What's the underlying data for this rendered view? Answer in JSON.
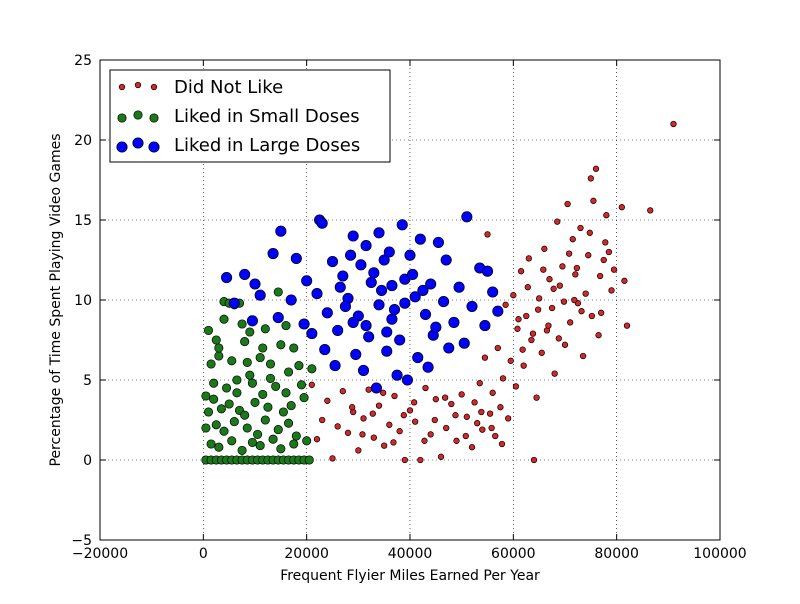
{
  "chart_data": {
    "type": "scatter",
    "title": "",
    "xlabel": "Frequent Flyier Miles Earned Per Year",
    "ylabel": "Percentage of Time Spent Playing Video Games",
    "xlim": [
      -20000,
      100000
    ],
    "ylim": [
      -5,
      25
    ],
    "xticks": [
      -20000,
      0,
      20000,
      40000,
      60000,
      80000,
      100000
    ],
    "xtick_labels": [
      "−20000",
      "0",
      "20000",
      "40000",
      "60000",
      "80000",
      "100000"
    ],
    "yticks": [
      -5,
      0,
      5,
      10,
      15,
      20,
      25
    ],
    "ytick_labels": [
      "−5",
      "0",
      "5",
      "10",
      "15",
      "20",
      "25"
    ],
    "grid": true,
    "legend_placement": "top-left",
    "series": [
      {
        "name": "Did Not Like",
        "color": "#d62728",
        "points": [
          [
            91000,
            21.0
          ],
          [
            86500,
            15.6
          ],
          [
            82000,
            8.4
          ],
          [
            81500,
            11.2
          ],
          [
            81000,
            15.8
          ],
          [
            79000,
            10.6
          ],
          [
            78500,
            13.0
          ],
          [
            78000,
            15.3
          ],
          [
            77500,
            12.5
          ],
          [
            77000,
            9.2
          ],
          [
            76500,
            7.8
          ],
          [
            76000,
            18.2
          ],
          [
            75500,
            16.2
          ],
          [
            75000,
            17.6
          ],
          [
            74500,
            12.8
          ],
          [
            74000,
            10.4
          ],
          [
            73500,
            6.5
          ],
          [
            73000,
            14.5
          ],
          [
            72500,
            9.8
          ],
          [
            72000,
            11.6
          ],
          [
            71500,
            13.8
          ],
          [
            71000,
            8.6
          ],
          [
            70500,
            16.0
          ],
          [
            70000,
            7.2
          ],
          [
            69500,
            12.1
          ],
          [
            69000,
            10.9
          ],
          [
            68500,
            14.9
          ],
          [
            68000,
            5.4
          ],
          [
            67500,
            9.5
          ],
          [
            67000,
            11.3
          ],
          [
            66500,
            8.1
          ],
          [
            66000,
            13.2
          ],
          [
            65500,
            6.7
          ],
          [
            65000,
            10.1
          ],
          [
            64500,
            3.9
          ],
          [
            64000,
            0.0
          ],
          [
            63500,
            7.5
          ],
          [
            63000,
            12.6
          ],
          [
            62500,
            9.0
          ],
          [
            62000,
            5.9
          ],
          [
            61500,
            11.8
          ],
          [
            61000,
            8.8
          ],
          [
            60500,
            4.6
          ],
          [
            60000,
            10.3
          ],
          [
            59500,
            6.2
          ],
          [
            59000,
            2.6
          ],
          [
            58500,
            9.7
          ],
          [
            58000,
            5.1
          ],
          [
            57500,
            3.3
          ],
          [
            57000,
            7.0
          ],
          [
            56500,
            1.5
          ],
          [
            56000,
            4.2
          ],
          [
            55500,
            2.9
          ],
          [
            55000,
            14.1
          ],
          [
            54500,
            6.4
          ],
          [
            54000,
            1.9
          ],
          [
            53500,
            4.8
          ],
          [
            53000,
            2.3
          ],
          [
            52500,
            3.6
          ],
          [
            52000,
            0.8
          ],
          [
            51000,
            2.7
          ],
          [
            50000,
            4.1
          ],
          [
            49000,
            1.2
          ],
          [
            48000,
            3.5
          ],
          [
            47000,
            2.0
          ],
          [
            46000,
            0.2
          ],
          [
            45000,
            3.8
          ],
          [
            44000,
            1.6
          ],
          [
            43000,
            4.5
          ],
          [
            42000,
            0.0
          ],
          [
            41000,
            2.4
          ],
          [
            40000,
            3.1
          ],
          [
            39000,
            0.0
          ],
          [
            38000,
            1.8
          ],
          [
            37000,
            4.0
          ],
          [
            36000,
            2.2
          ],
          [
            35000,
            0.9
          ],
          [
            34000,
            3.4
          ],
          [
            33000,
            1.4
          ],
          [
            32000,
            4.4
          ],
          [
            31000,
            2.6
          ],
          [
            30000,
            0.6
          ],
          [
            29000,
            3.0
          ],
          [
            28000,
            1.7
          ],
          [
            27000,
            4.3
          ],
          [
            26000,
            2.1
          ],
          [
            25000,
            0.1
          ],
          [
            24000,
            3.7
          ],
          [
            23000,
            2.5
          ],
          [
            22000,
            1.3
          ],
          [
            21000,
            4.7
          ],
          [
            72300,
            12.0
          ],
          [
            71800,
            10.0
          ],
          [
            73200,
            9.3
          ],
          [
            74800,
            14.2
          ],
          [
            76800,
            11.5
          ],
          [
            75200,
            9.0
          ],
          [
            70800,
            12.9
          ],
          [
            69800,
            9.9
          ],
          [
            68800,
            7.6
          ],
          [
            67800,
            10.7
          ],
          [
            66800,
            8.4
          ],
          [
            65800,
            11.9
          ],
          [
            64800,
            9.4
          ],
          [
            63800,
            7.9
          ],
          [
            62800,
            10.8
          ],
          [
            61800,
            6.9
          ],
          [
            60800,
            8.2
          ],
          [
            79500,
            11.9
          ],
          [
            77800,
            13.6
          ],
          [
            53800,
            3.0
          ],
          [
            55800,
            2.0
          ],
          [
            57800,
            1.0
          ],
          [
            50800,
            1.5
          ],
          [
            48800,
            2.8
          ],
          [
            46800,
            3.9
          ],
          [
            44800,
            2.5
          ],
          [
            42800,
            1.2
          ],
          [
            40800,
            3.6
          ],
          [
            38800,
            2.8
          ],
          [
            36800,
            1.1
          ],
          [
            34800,
            4.2
          ],
          [
            32800,
            2.9
          ],
          [
            30800,
            1.6
          ],
          [
            28800,
            3.3
          ]
        ]
      },
      {
        "name": "Liked in Small Doses",
        "color": "#1a7a1a",
        "points": [
          [
            4000,
            9.9
          ],
          [
            5000,
            9.8
          ],
          [
            6000,
            9.7
          ],
          [
            7000,
            9.8
          ],
          [
            14500,
            10.5
          ],
          [
            7500,
            8.5
          ],
          [
            2500,
            7.5
          ],
          [
            1000,
            8.1
          ],
          [
            9000,
            8.0
          ],
          [
            12000,
            8.2
          ],
          [
            15000,
            7.2
          ],
          [
            17500,
            7.0
          ],
          [
            1500,
            6.0
          ],
          [
            3000,
            6.5
          ],
          [
            5500,
            6.2
          ],
          [
            8500,
            6.1
          ],
          [
            11000,
            6.4
          ],
          [
            13000,
            6.0
          ],
          [
            16500,
            5.5
          ],
          [
            18500,
            5.9
          ],
          [
            500,
            4.0
          ],
          [
            2000,
            4.8
          ],
          [
            4500,
            4.5
          ],
          [
            6500,
            4.2
          ],
          [
            9500,
            4.8
          ],
          [
            11500,
            4.1
          ],
          [
            14000,
            4.6
          ],
          [
            16000,
            4.2
          ],
          [
            19000,
            4.7
          ],
          [
            21000,
            5.7
          ],
          [
            1000,
            3.0
          ],
          [
            3500,
            3.2
          ],
          [
            5000,
            3.5
          ],
          [
            7000,
            3.1
          ],
          [
            8000,
            2.8
          ],
          [
            10000,
            3.6
          ],
          [
            12500,
            3.3
          ],
          [
            15500,
            3.0
          ],
          [
            17000,
            3.4
          ],
          [
            19500,
            3.9
          ],
          [
            500,
            2.0
          ],
          [
            2500,
            2.2
          ],
          [
            4000,
            1.8
          ],
          [
            6000,
            2.4
          ],
          [
            8500,
            2.0
          ],
          [
            10500,
            1.6
          ],
          [
            12000,
            2.5
          ],
          [
            14500,
            1.9
          ],
          [
            16500,
            2.3
          ],
          [
            18000,
            1.5
          ],
          [
            1500,
            1.0
          ],
          [
            3000,
            0.8
          ],
          [
            5500,
            1.2
          ],
          [
            7500,
            0.6
          ],
          [
            9500,
            1.1
          ],
          [
            11000,
            0.9
          ],
          [
            13500,
            1.3
          ],
          [
            15000,
            0.7
          ],
          [
            17500,
            1.0
          ],
          [
            20000,
            1.2
          ],
          [
            500,
            0.0
          ],
          [
            1500,
            0.0
          ],
          [
            2500,
            0.0
          ],
          [
            3500,
            0.0
          ],
          [
            4500,
            0.0
          ],
          [
            5500,
            0.0
          ],
          [
            6500,
            0.0
          ],
          [
            7500,
            0.0
          ],
          [
            8500,
            0.0
          ],
          [
            9500,
            0.0
          ],
          [
            10500,
            0.0
          ],
          [
            11500,
            0.0
          ],
          [
            12500,
            0.0
          ],
          [
            13500,
            0.0
          ],
          [
            14500,
            0.0
          ],
          [
            15500,
            0.0
          ],
          [
            16500,
            0.0
          ],
          [
            17500,
            0.0
          ],
          [
            18500,
            0.0
          ],
          [
            19500,
            0.0
          ],
          [
            20500,
            0.0
          ],
          [
            2000,
            3.8
          ],
          [
            6500,
            5.0
          ],
          [
            9000,
            5.3
          ],
          [
            13000,
            5.1
          ],
          [
            3000,
            7.0
          ],
          [
            8000,
            7.4
          ],
          [
            11500,
            7.0
          ],
          [
            16000,
            8.4
          ],
          [
            4000,
            8.8
          ]
        ]
      },
      {
        "name": "Liked in Large Doses",
        "color": "#0000ff",
        "points": [
          [
            51000,
            15.2
          ],
          [
            22500,
            15.0
          ],
          [
            23000,
            14.8
          ],
          [
            15000,
            14.3
          ],
          [
            29000,
            14.0
          ],
          [
            38500,
            14.7
          ],
          [
            34000,
            14.2
          ],
          [
            42000,
            13.8
          ],
          [
            45500,
            13.6
          ],
          [
            13500,
            12.9
          ],
          [
            18000,
            12.6
          ],
          [
            25000,
            12.4
          ],
          [
            31500,
            13.4
          ],
          [
            36000,
            13.0
          ],
          [
            40000,
            12.8
          ],
          [
            47000,
            12.5
          ],
          [
            53500,
            12.0
          ],
          [
            55000,
            11.8
          ],
          [
            8000,
            11.6
          ],
          [
            4500,
            11.4
          ],
          [
            10000,
            11.0
          ],
          [
            20000,
            11.2
          ],
          [
            27000,
            11.5
          ],
          [
            33000,
            11.7
          ],
          [
            39000,
            11.3
          ],
          [
            44000,
            11.0
          ],
          [
            49500,
            10.8
          ],
          [
            56000,
            10.5
          ],
          [
            6000,
            9.8
          ],
          [
            11000,
            10.3
          ],
          [
            17000,
            10.0
          ],
          [
            22000,
            10.4
          ],
          [
            28000,
            10.1
          ],
          [
            34500,
            10.6
          ],
          [
            41000,
            10.2
          ],
          [
            46500,
            9.9
          ],
          [
            52000,
            9.6
          ],
          [
            57000,
            9.3
          ],
          [
            9500,
            8.7
          ],
          [
            14500,
            8.9
          ],
          [
            19500,
            8.5
          ],
          [
            24000,
            9.2
          ],
          [
            30000,
            9.0
          ],
          [
            36500,
            8.8
          ],
          [
            43000,
            9.1
          ],
          [
            48500,
            8.6
          ],
          [
            54500,
            8.4
          ],
          [
            21000,
            7.9
          ],
          [
            26000,
            8.1
          ],
          [
            32000,
            7.7
          ],
          [
            38000,
            7.5
          ],
          [
            44500,
            7.8
          ],
          [
            50500,
            7.3
          ],
          [
            23500,
            6.9
          ],
          [
            29500,
            6.6
          ],
          [
            35500,
            6.8
          ],
          [
            41500,
            6.4
          ],
          [
            47500,
            7.0
          ],
          [
            25500,
            5.9
          ],
          [
            31000,
            5.6
          ],
          [
            37500,
            5.3
          ],
          [
            43500,
            5.8
          ],
          [
            33500,
            4.5
          ],
          [
            39500,
            5.0
          ],
          [
            30500,
            12.2
          ],
          [
            32500,
            11.1
          ],
          [
            34000,
            9.7
          ],
          [
            35000,
            12.5
          ],
          [
            36500,
            10.9
          ],
          [
            37000,
            9.4
          ],
          [
            28500,
            12.8
          ],
          [
            27500,
            9.6
          ],
          [
            26500,
            10.8
          ],
          [
            40500,
            11.6
          ],
          [
            42500,
            10.6
          ],
          [
            31500,
            8.4
          ],
          [
            35500,
            8.0
          ],
          [
            39000,
            9.8
          ],
          [
            45000,
            8.3
          ],
          [
            29000,
            8.6
          ]
        ]
      }
    ]
  }
}
